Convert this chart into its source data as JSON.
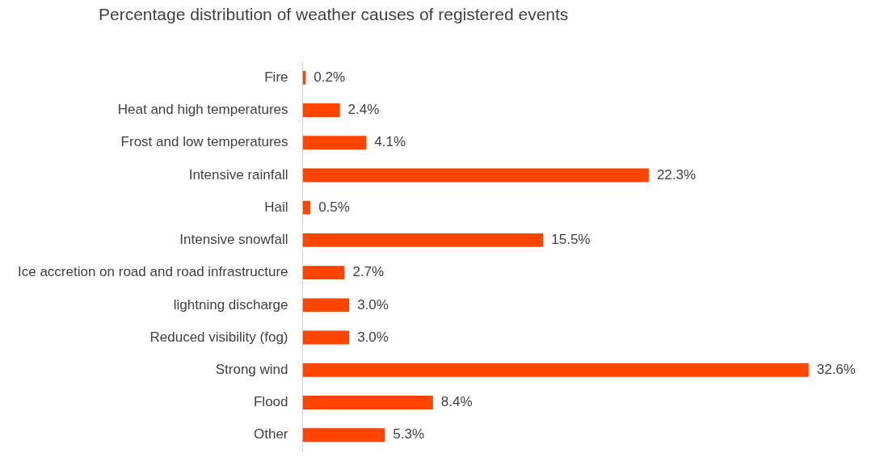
{
  "chart_data": {
    "type": "bar",
    "orientation": "horizontal",
    "title": "Percentage distribution of weather causes of registered events",
    "categories": [
      "Fire",
      "Heat and high temperatures",
      "Frost and low temperatures",
      "Intensive rainfall",
      "Hail",
      "Intensive snowfall",
      "Ice accretion on road and road infrastructure",
      "lightning discharge",
      "Reduced visibility (fog)",
      "Strong wind",
      "Flood",
      "Other"
    ],
    "values": [
      0.2,
      2.4,
      4.1,
      22.3,
      0.5,
      15.5,
      2.7,
      3.0,
      3.0,
      32.6,
      8.4,
      5.3
    ],
    "value_labels": [
      "0.2%",
      "2.4%",
      "4.1%",
      "22.3%",
      "0.5%",
      "15.5%",
      "2.7%",
      "3.0%",
      "3.0%",
      "32.6%",
      "8.4%",
      "5.3%"
    ],
    "color": "#ff4500",
    "legend": false
  }
}
